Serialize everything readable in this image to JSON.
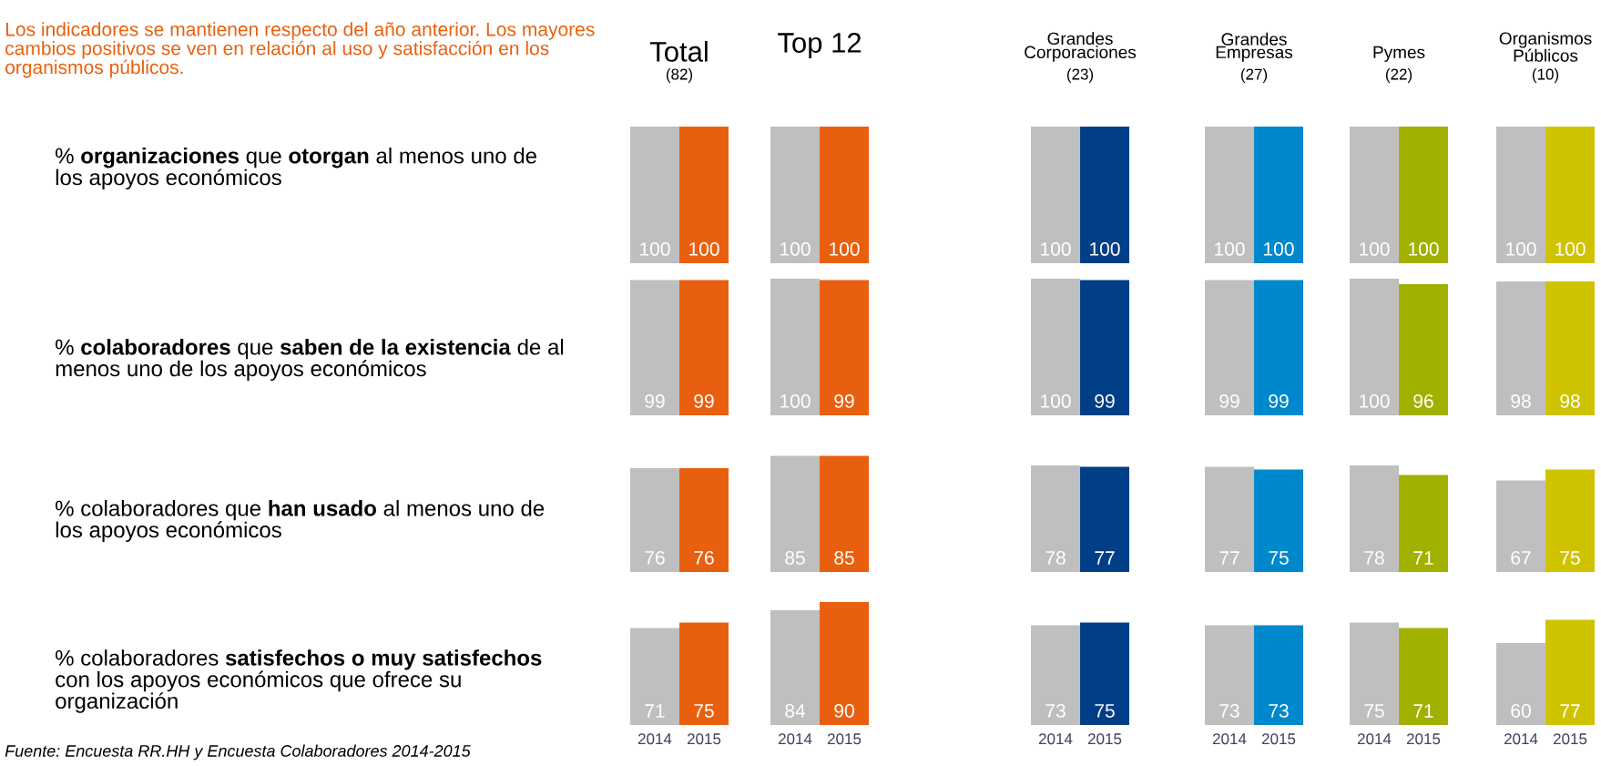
{
  "chart_data": [
    {
      "type": "other",
      "title": "Los indicadores se mantienen respecto del año anterior. Los mayores cambios positivos se ven en relación al uso y satisfacción en los organismos públicos.",
      "annotations": [
        "% **organizaciones** que **otorgan** al menos uno de los apoyos económicos",
        "% **colaboradores** que **saben de la existencia** de al menos uno de los apoyos económicos",
        "% colaboradores que **han usado** al menos uno de los apoyos económicos",
        "% colaboradores **satisfechos o muy satisfechos** con los apoyos económicos que ofrece su organización",
        "Fuente: Encuesta RR.HH y Encuesta Colaboradores 2014-2015"
      ]
    },
    {
      "type": "bar",
      "title": "Total",
      "subtitle": "(82)",
      "categories": [
        null,
        null
      ],
      "values": [
        100,
        100
      ],
      "colors": [
        "#bfbfbf",
        "#e8600f"
      ],
      "data_labels": true
    },
    {
      "type": "bar",
      "title": "Top 12",
      "categories": [
        null,
        null
      ],
      "values": [
        100,
        100
      ],
      "colors": [
        "#bfbfbf",
        "#e8600f"
      ],
      "data_labels": true
    },
    {
      "type": "bar",
      "title": "Grandes Corporaciones",
      "subtitle": "(23)",
      "categories": [
        null,
        null
      ],
      "values": [
        100,
        100
      ],
      "colors": [
        "#bfbfbf",
        "#003f87"
      ],
      "data_labels": true
    },
    {
      "type": "bar",
      "title": "Grandes Empresas",
      "subtitle": "(27)",
      "categories": [
        null,
        null
      ],
      "values": [
        100,
        100
      ],
      "colors": [
        "#bfbfbf",
        "#0088cc"
      ],
      "data_labels": true
    },
    {
      "type": "bar",
      "title": "Pymes",
      "subtitle": "(22)",
      "categories": [
        null,
        null
      ],
      "values": [
        100,
        100
      ],
      "colors": [
        "#bfbfbf",
        "#a2b000"
      ],
      "data_labels": true
    },
    {
      "type": "bar",
      "title": "Organismos Públicos",
      "subtitle": "(10)",
      "categories": [
        null,
        null
      ],
      "values": [
        100,
        100
      ],
      "colors": [
        "#bfbfbf",
        "#cfc300"
      ],
      "data_labels": true
    },
    {
      "type": "bar",
      "categories": [
        null,
        null
      ],
      "values": [
        99,
        99
      ],
      "colors": [
        "#bfbfbf",
        "#e8600f"
      ],
      "data_labels": true
    },
    {
      "type": "bar",
      "categories": [
        null,
        null
      ],
      "values": [
        100,
        99
      ],
      "colors": [
        "#bfbfbf",
        "#e8600f"
      ],
      "data_labels": true
    },
    {
      "type": "bar",
      "categories": [
        null,
        null
      ],
      "values": [
        100,
        99
      ],
      "colors": [
        "#bfbfbf",
        "#003f87"
      ],
      "data_labels": true
    },
    {
      "type": "bar",
      "categories": [
        null,
        null
      ],
      "values": [
        99,
        99
      ],
      "colors": [
        "#bfbfbf",
        "#0088cc"
      ],
      "data_labels": true
    },
    {
      "type": "bar",
      "categories": [
        null,
        null
      ],
      "values": [
        100,
        96
      ],
      "colors": [
        "#bfbfbf",
        "#a2b000"
      ],
      "data_labels": true
    },
    {
      "type": "bar",
      "categories": [
        null,
        null
      ],
      "values": [
        98,
        98
      ],
      "colors": [
        "#bfbfbf",
        "#cfc300"
      ],
      "data_labels": true
    },
    {
      "type": "bar",
      "categories": [
        null,
        null
      ],
      "values": [
        76,
        76
      ],
      "colors": [
        "#bfbfbf",
        "#e8600f"
      ],
      "data_labels": true
    },
    {
      "type": "bar",
      "categories": [
        null,
        null
      ],
      "values": [
        85,
        85
      ],
      "colors": [
        "#bfbfbf",
        "#e8600f"
      ],
      "data_labels": true
    },
    {
      "type": "bar",
      "categories": [
        null,
        null
      ],
      "values": [
        78,
        77
      ],
      "colors": [
        "#bfbfbf",
        "#003f87"
      ],
      "data_labels": true
    },
    {
      "type": "bar",
      "categories": [
        null,
        null
      ],
      "values": [
        77,
        75
      ],
      "colors": [
        "#bfbfbf",
        "#0088cc"
      ],
      "data_labels": true
    },
    {
      "type": "bar",
      "categories": [
        null,
        null
      ],
      "values": [
        78,
        71
      ],
      "colors": [
        "#bfbfbf",
        "#a2b000"
      ],
      "data_labels": true
    },
    {
      "type": "bar",
      "categories": [
        null,
        null
      ],
      "values": [
        67,
        75
      ],
      "colors": [
        "#bfbfbf",
        "#cfc300"
      ],
      "data_labels": true
    },
    {
      "type": "bar",
      "categories": [
        "2014",
        "2015"
      ],
      "values": [
        71,
        75
      ],
      "colors": [
        "#bfbfbf",
        "#e8600f"
      ],
      "data_labels": true
    },
    {
      "type": "bar",
      "categories": [
        "2014",
        "2015"
      ],
      "values": [
        84,
        90
      ],
      "colors": [
        "#bfbfbf",
        "#e8600f"
      ],
      "data_labels": true
    },
    {
      "type": "bar",
      "categories": [
        "2014",
        "2015"
      ],
      "values": [
        73,
        75
      ],
      "colors": [
        "#bfbfbf",
        "#003f87"
      ],
      "data_labels": true
    },
    {
      "type": "bar",
      "categories": [
        "2014",
        "2015"
      ],
      "values": [
        73,
        73
      ],
      "colors": [
        "#bfbfbf",
        "#0088cc"
      ],
      "data_labels": true
    },
    {
      "type": "bar",
      "categories": [
        "2014",
        "2015"
      ],
      "values": [
        75,
        71
      ],
      "colors": [
        "#bfbfbf",
        "#a2b000"
      ],
      "data_labels": true
    },
    {
      "type": "bar",
      "categories": [
        "2014",
        "2015"
      ],
      "values": [
        60,
        77
      ],
      "colors": [
        "#bfbfbf",
        "#cfc300"
      ],
      "data_labels": true
    }
  ]
}
